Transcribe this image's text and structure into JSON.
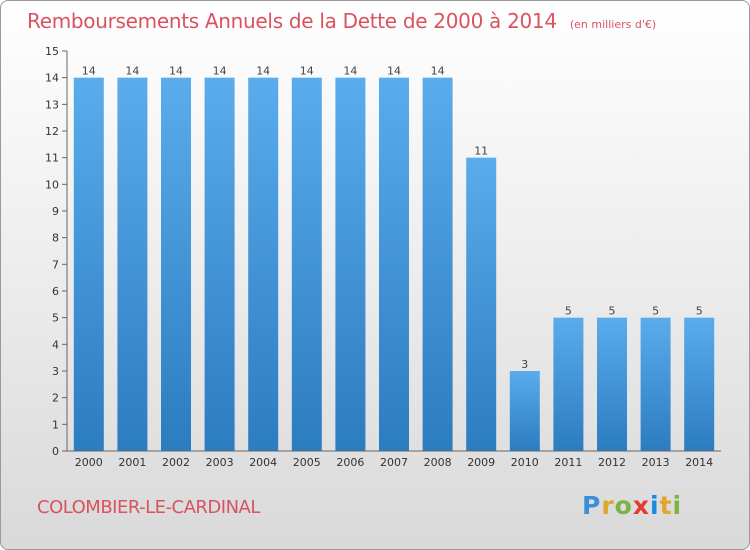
{
  "header": {
    "title": "Remboursements Annuels de la Dette de 2000 à 2014",
    "unit": "(en milliers d'€)"
  },
  "footer": {
    "commune": "COLOMBIER-LE-CARDINAL",
    "logo_letters": [
      "P",
      "r",
      "o",
      "x",
      "i",
      "t",
      "i"
    ],
    "logo_colors": [
      "#3a8fd8",
      "#e0a52b",
      "#7cb342",
      "#e53935",
      "#1e88e5",
      "#e0a52b",
      "#7cb342"
    ]
  },
  "chart_data": {
    "type": "bar",
    "title": "Remboursements Annuels de la Dette de 2000 à 2014",
    "xlabel": "",
    "ylabel": "",
    "categories": [
      "2000",
      "2001",
      "2002",
      "2003",
      "2004",
      "2005",
      "2006",
      "2007",
      "2008",
      "2009",
      "2010",
      "2011",
      "2012",
      "2013",
      "2014"
    ],
    "values": [
      14,
      14,
      14,
      14,
      14,
      14,
      14,
      14,
      14,
      11,
      3,
      5,
      5,
      5,
      5
    ],
    "value_labels": [
      "14",
      "14",
      "14",
      "14",
      "14",
      "14",
      "14",
      "14",
      "14",
      "11",
      "3",
      "5",
      "5",
      "5",
      "5"
    ],
    "ylim": [
      0,
      15
    ],
    "yticks": [
      0,
      1,
      2,
      3,
      4,
      5,
      6,
      7,
      8,
      9,
      10,
      11,
      12,
      13,
      14,
      15
    ],
    "grid": false,
    "bar_color": "#3d8fd6"
  }
}
